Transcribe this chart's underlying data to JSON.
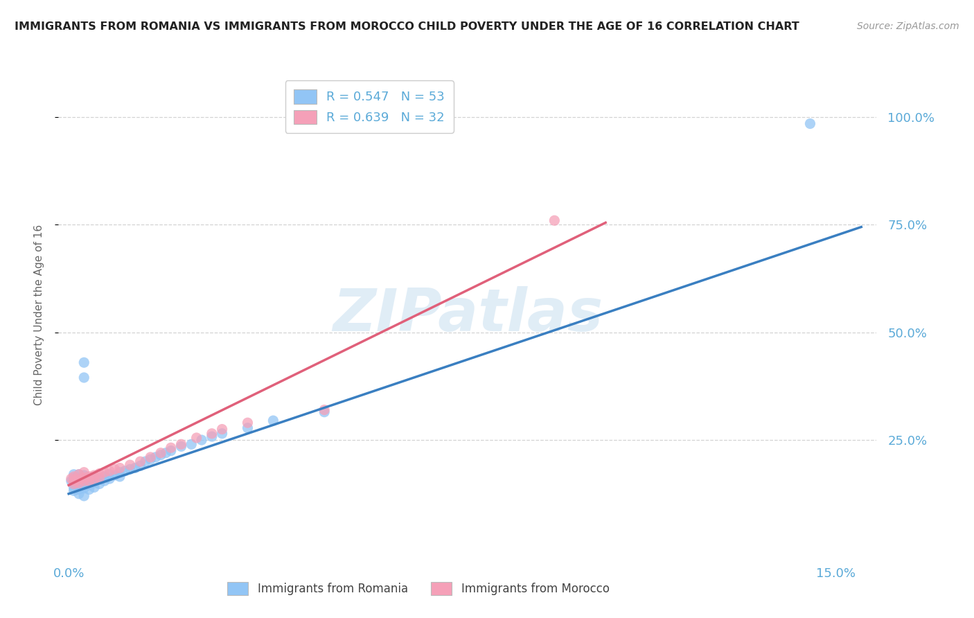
{
  "title": "IMMIGRANTS FROM ROMANIA VS IMMIGRANTS FROM MOROCCO CHILD POVERTY UNDER THE AGE OF 16 CORRELATION CHART",
  "source": "Source: ZipAtlas.com",
  "romania_label": "Immigrants from Romania",
  "morocco_label": "Immigrants from Morocco",
  "romania_color": "#92c5f5",
  "morocco_color": "#f5a0b8",
  "romania_line_color": "#3a7fc1",
  "morocco_line_color": "#e0607a",
  "background_color": "#ffffff",
  "grid_color": "#c8c8c8",
  "watermark_text": "ZIPatlas",
  "ytick_values": [
    0.25,
    0.5,
    0.75,
    1.0
  ],
  "ytick_labels": [
    "25.0%",
    "50.0%",
    "75.0%",
    "100.0%"
  ],
  "xtick_values": [
    0.0,
    0.15
  ],
  "xtick_labels": [
    "0.0%",
    "15.0%"
  ],
  "ylabel": "Child Poverty Under the Age of 16",
  "xlim": [
    -0.002,
    0.158
  ],
  "ylim": [
    -0.02,
    1.1
  ],
  "romania_scatter": [
    [
      0.0005,
      0.155
    ],
    [
      0.001,
      0.148
    ],
    [
      0.001,
      0.162
    ],
    [
      0.001,
      0.17
    ],
    [
      0.001,
      0.14
    ],
    [
      0.001,
      0.132
    ],
    [
      0.002,
      0.155
    ],
    [
      0.002,
      0.148
    ],
    [
      0.002,
      0.162
    ],
    [
      0.002,
      0.135
    ],
    [
      0.002,
      0.17
    ],
    [
      0.002,
      0.125
    ],
    [
      0.003,
      0.158
    ],
    [
      0.003,
      0.145
    ],
    [
      0.003,
      0.138
    ],
    [
      0.003,
      0.168
    ],
    [
      0.003,
      0.12
    ],
    [
      0.004,
      0.155
    ],
    [
      0.004,
      0.145
    ],
    [
      0.004,
      0.135
    ],
    [
      0.005,
      0.162
    ],
    [
      0.005,
      0.15
    ],
    [
      0.005,
      0.14
    ],
    [
      0.006,
      0.158
    ],
    [
      0.006,
      0.148
    ],
    [
      0.007,
      0.165
    ],
    [
      0.007,
      0.155
    ],
    [
      0.008,
      0.17
    ],
    [
      0.008,
      0.16
    ],
    [
      0.009,
      0.168
    ],
    [
      0.01,
      0.175
    ],
    [
      0.01,
      0.165
    ],
    [
      0.011,
      0.178
    ],
    [
      0.012,
      0.182
    ],
    [
      0.013,
      0.185
    ],
    [
      0.014,
      0.19
    ],
    [
      0.015,
      0.2
    ],
    [
      0.016,
      0.205
    ],
    [
      0.017,
      0.21
    ],
    [
      0.018,
      0.215
    ],
    [
      0.019,
      0.22
    ],
    [
      0.02,
      0.225
    ],
    [
      0.022,
      0.235
    ],
    [
      0.024,
      0.24
    ],
    [
      0.026,
      0.25
    ],
    [
      0.028,
      0.258
    ],
    [
      0.03,
      0.265
    ],
    [
      0.035,
      0.278
    ],
    [
      0.04,
      0.295
    ],
    [
      0.05,
      0.315
    ],
    [
      0.003,
      0.395
    ],
    [
      0.003,
      0.43
    ],
    [
      0.145,
      0.985
    ]
  ],
  "morocco_scatter": [
    [
      0.0005,
      0.16
    ],
    [
      0.001,
      0.155
    ],
    [
      0.001,
      0.148
    ],
    [
      0.001,
      0.165
    ],
    [
      0.002,
      0.158
    ],
    [
      0.002,
      0.15
    ],
    [
      0.002,
      0.17
    ],
    [
      0.003,
      0.162
    ],
    [
      0.003,
      0.155
    ],
    [
      0.003,
      0.175
    ],
    [
      0.004,
      0.165
    ],
    [
      0.004,
      0.155
    ],
    [
      0.005,
      0.168
    ],
    [
      0.005,
      0.158
    ],
    [
      0.006,
      0.172
    ],
    [
      0.006,
      0.162
    ],
    [
      0.007,
      0.175
    ],
    [
      0.008,
      0.178
    ],
    [
      0.009,
      0.182
    ],
    [
      0.01,
      0.185
    ],
    [
      0.012,
      0.192
    ],
    [
      0.014,
      0.2
    ],
    [
      0.016,
      0.21
    ],
    [
      0.018,
      0.22
    ],
    [
      0.02,
      0.232
    ],
    [
      0.022,
      0.24
    ],
    [
      0.025,
      0.255
    ],
    [
      0.028,
      0.265
    ],
    [
      0.03,
      0.275
    ],
    [
      0.035,
      0.29
    ],
    [
      0.05,
      0.32
    ],
    [
      0.095,
      0.76
    ]
  ],
  "romania_line": {
    "x0": 0.0,
    "y0": 0.125,
    "x1": 0.155,
    "y1": 0.745
  },
  "morocco_line": {
    "x0": 0.0,
    "y0": 0.145,
    "x1": 0.105,
    "y1": 0.755
  }
}
